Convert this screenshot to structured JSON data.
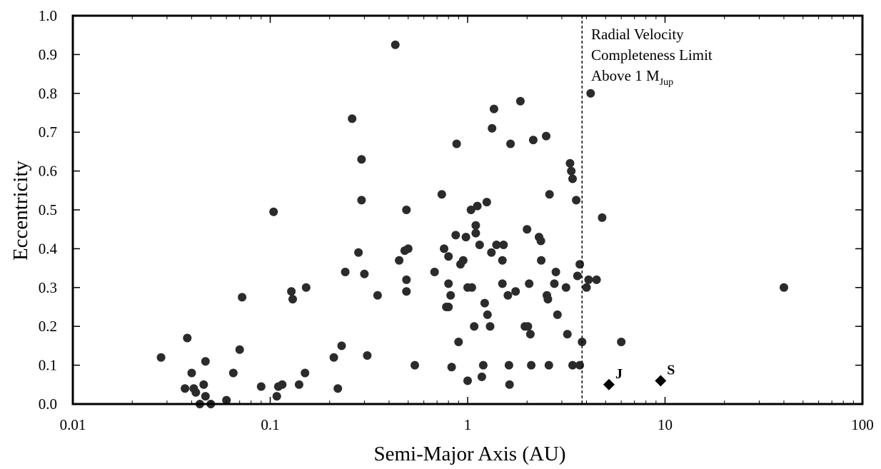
{
  "chart_data": {
    "type": "scatter",
    "xlabel": "Semi-Major Axis (AU)",
    "ylabel": "Eccentricity",
    "xscale": "log",
    "xlim": [
      0.01,
      100
    ],
    "ylim": [
      0.0,
      1.0
    ],
    "x_ticks": [
      "0.01",
      "0.1",
      "1",
      "10",
      "100"
    ],
    "y_ticks": [
      "0.0",
      "0.1",
      "0.2",
      "0.3",
      "0.4",
      "0.5",
      "0.6",
      "0.7",
      "0.8",
      "0.9",
      "1.0"
    ],
    "grid": false,
    "dot_color": "#2b2b2b",
    "annotation": {
      "lines": [
        "Radial Velocity",
        "Completeness Limit"
      ],
      "line3_main": "Above 1 M",
      "line3_sub": "Jup"
    },
    "reference_line": {
      "x": 3.8,
      "style": "dashed"
    },
    "markers": [
      {
        "label": "J",
        "x": 5.2,
        "y": 0.05,
        "shape": "diamond"
      },
      {
        "label": "S",
        "x": 9.5,
        "y": 0.06,
        "shape": "diamond"
      }
    ],
    "points": [
      [
        0.028,
        0.12
      ],
      [
        0.038,
        0.17
      ],
      [
        0.037,
        0.04
      ],
      [
        0.04,
        0.08
      ],
      [
        0.041,
        0.04
      ],
      [
        0.042,
        0.03
      ],
      [
        0.044,
        0.0
      ],
      [
        0.046,
        0.05
      ],
      [
        0.047,
        0.11
      ],
      [
        0.047,
        0.02
      ],
      [
        0.05,
        0.0
      ],
      [
        0.06,
        0.01
      ],
      [
        0.065,
        0.08
      ],
      [
        0.07,
        0.14
      ],
      [
        0.072,
        0.275
      ],
      [
        0.09,
        0.045
      ],
      [
        0.104,
        0.495
      ],
      [
        0.108,
        0.02
      ],
      [
        0.11,
        0.045
      ],
      [
        0.115,
        0.05
      ],
      [
        0.128,
        0.29
      ],
      [
        0.13,
        0.27
      ],
      [
        0.14,
        0.05
      ],
      [
        0.15,
        0.08
      ],
      [
        0.152,
        0.3
      ],
      [
        0.21,
        0.12
      ],
      [
        0.22,
        0.04
      ],
      [
        0.23,
        0.15
      ],
      [
        0.24,
        0.34
      ],
      [
        0.26,
        0.735
      ],
      [
        0.28,
        0.39
      ],
      [
        0.29,
        0.63
      ],
      [
        0.29,
        0.525
      ],
      [
        0.3,
        0.335
      ],
      [
        0.31,
        0.125
      ],
      [
        0.35,
        0.28
      ],
      [
        0.43,
        0.925
      ],
      [
        0.45,
        0.37
      ],
      [
        0.48,
        0.395
      ],
      [
        0.49,
        0.5
      ],
      [
        0.49,
        0.32
      ],
      [
        0.49,
        0.29
      ],
      [
        0.5,
        0.4
      ],
      [
        0.54,
        0.1
      ],
      [
        0.68,
        0.34
      ],
      [
        0.74,
        0.54
      ],
      [
        0.76,
        0.4
      ],
      [
        0.78,
        0.25
      ],
      [
        0.8,
        0.31
      ],
      [
        0.8,
        0.25
      ],
      [
        0.8,
        0.38
      ],
      [
        0.82,
        0.28
      ],
      [
        0.83,
        0.095
      ],
      [
        0.87,
        0.435
      ],
      [
        0.88,
        0.67
      ],
      [
        0.9,
        0.16
      ],
      [
        0.92,
        0.36
      ],
      [
        0.95,
        0.37
      ],
      [
        0.98,
        0.43
      ],
      [
        1.0,
        0.06
      ],
      [
        1.0,
        0.3
      ],
      [
        1.04,
        0.5
      ],
      [
        1.05,
        0.3
      ],
      [
        1.08,
        0.2
      ],
      [
        1.1,
        0.46
      ],
      [
        1.1,
        0.44
      ],
      [
        1.12,
        0.51
      ],
      [
        1.15,
        0.41
      ],
      [
        1.18,
        0.07
      ],
      [
        1.2,
        0.1
      ],
      [
        1.22,
        0.26
      ],
      [
        1.25,
        0.52
      ],
      [
        1.26,
        0.23
      ],
      [
        1.3,
        0.2
      ],
      [
        1.32,
        0.39
      ],
      [
        1.33,
        0.71
      ],
      [
        1.36,
        0.76
      ],
      [
        1.4,
        0.41
      ],
      [
        1.5,
        0.31
      ],
      [
        1.5,
        0.37
      ],
      [
        1.52,
        0.41
      ],
      [
        1.6,
        0.28
      ],
      [
        1.62,
        0.1
      ],
      [
        1.63,
        0.05
      ],
      [
        1.65,
        0.67
      ],
      [
        1.75,
        0.29
      ],
      [
        1.85,
        0.78
      ],
      [
        1.95,
        0.2
      ],
      [
        2.0,
        0.45
      ],
      [
        2.02,
        0.2
      ],
      [
        2.05,
        0.31
      ],
      [
        2.08,
        0.18
      ],
      [
        2.1,
        0.1
      ],
      [
        2.15,
        0.68
      ],
      [
        2.3,
        0.43
      ],
      [
        2.35,
        0.42
      ],
      [
        2.36,
        0.37
      ],
      [
        2.5,
        0.69
      ],
      [
        2.52,
        0.28
      ],
      [
        2.55,
        0.27
      ],
      [
        2.58,
        0.1
      ],
      [
        2.6,
        0.54
      ],
      [
        2.75,
        0.31
      ],
      [
        2.8,
        0.34
      ],
      [
        2.85,
        0.23
      ],
      [
        3.15,
        0.3
      ],
      [
        3.2,
        0.18
      ],
      [
        3.3,
        0.62
      ],
      [
        3.35,
        0.6
      ],
      [
        3.4,
        0.58
      ],
      [
        3.4,
        0.1
      ],
      [
        3.55,
        0.525
      ],
      [
        3.6,
        0.33
      ],
      [
        3.7,
        0.36
      ],
      [
        3.7,
        0.1
      ],
      [
        3.8,
        0.16
      ],
      [
        4.0,
        0.3
      ],
      [
        4.1,
        0.32
      ],
      [
        4.2,
        0.8
      ],
      [
        4.5,
        0.32
      ],
      [
        4.8,
        0.48
      ],
      [
        6.0,
        0.16
      ],
      [
        40.0,
        0.3
      ]
    ]
  }
}
